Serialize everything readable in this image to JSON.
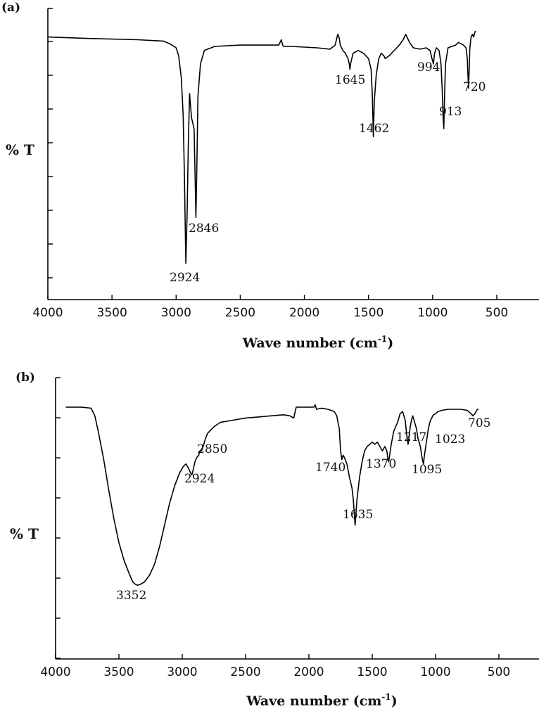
{
  "chart_data": [
    {
      "type": "line",
      "panel_label": "(a)",
      "title": "",
      "xlabel": "Wave number (cm",
      "xlabel_sup": "-1",
      "xlabel_close": ")",
      "ylabel": "% T",
      "xlim": [
        4000,
        250
      ],
      "ylim": [
        0,
        100
      ],
      "xticks": [
        4000,
        3500,
        3000,
        2500,
        2000,
        1500,
        1000,
        500
      ],
      "x_reversed": true,
      "grid": false,
      "series": [
        {
          "x": [
            4000,
            3700,
            3300,
            3100,
            3050,
            3000,
            2980,
            2960,
            2945,
            2935,
            2924,
            2915,
            2905,
            2895,
            2880,
            2870,
            2860,
            2850,
            2846,
            2840,
            2830,
            2810,
            2780,
            2700,
            2500,
            2200,
            2180,
            2170,
            2160,
            2100,
            1900,
            1800,
            1760,
            1740,
            1730,
            1720,
            1700,
            1680,
            1660,
            1650,
            1645,
            1640,
            1620,
            1580,
            1540,
            1500,
            1480,
            1470,
            1462,
            1455,
            1440,
            1420,
            1400,
            1380,
            1370,
            1340,
            1300,
            1260,
            1230,
            1210,
            1200,
            1180,
            1150,
            1100,
            1050,
            1020,
            1005,
            994,
            985,
            970,
            950,
            935,
            925,
            918,
            913,
            908,
            900,
            880,
            850,
            820,
            800,
            780,
            760,
            740,
            730,
            725,
            720,
            715,
            710,
            700,
            690,
            680,
            670,
            660
          ],
          "y": [
            92,
            91.5,
            91,
            90.5,
            89.5,
            88,
            85,
            77,
            63,
            40,
            8,
            25,
            52,
            71,
            62,
            60,
            58,
            36,
            25,
            40,
            70,
            82,
            87,
            88.5,
            89,
            89,
            91,
            89,
            88.5,
            88.5,
            88,
            87.5,
            89,
            93,
            92,
            89,
            87,
            86,
            84,
            82,
            80,
            82,
            86,
            87,
            86,
            84,
            80,
            70,
            55,
            68,
            78,
            84,
            86,
            85,
            84,
            85,
            87,
            89,
            91,
            93,
            92,
            90,
            88,
            87.5,
            88,
            87,
            84,
            82,
            86,
            88,
            87,
            82,
            72,
            62,
            58,
            68,
            82,
            88,
            88.5,
            89,
            90,
            89.5,
            89,
            88,
            84,
            78,
            73,
            80,
            88,
            92,
            93,
            92,
            94,
            94
          ]
        }
      ],
      "annotations": [
        {
          "text": "2924",
          "x": 2924,
          "y": 0
        },
        {
          "text": "2846",
          "x": 2846,
          "y": 18
        },
        {
          "text": "1645",
          "x": 1645,
          "y": 73
        },
        {
          "text": "1462",
          "x": 1462,
          "y": 47
        },
        {
          "text": "994",
          "x": 994,
          "y": 76
        },
        {
          "text": "913",
          "x": 913,
          "y": 52
        },
        {
          "text": "720",
          "x": 720,
          "y": 67
        }
      ]
    },
    {
      "type": "line",
      "panel_label": "(b)",
      "title": "",
      "xlabel": "Wave number (cm",
      "xlabel_sup": "-1",
      "xlabel_close": ")",
      "ylabel": "% T",
      "xlim": [
        4000,
        250
      ],
      "ylim": [
        0,
        100
      ],
      "xticks": [
        4000,
        3500,
        3000,
        2500,
        2000,
        1500,
        1000,
        500
      ],
      "x_reversed": true,
      "grid": false,
      "series": [
        {
          "x": [
            3920,
            3800,
            3720,
            3690,
            3660,
            3620,
            3580,
            3540,
            3500,
            3460,
            3420,
            3390,
            3370,
            3352,
            3330,
            3300,
            3260,
            3220,
            3180,
            3140,
            3100,
            3060,
            3020,
            2990,
            2970,
            2950,
            2935,
            2924,
            2915,
            2900,
            2885,
            2870,
            2860,
            2850,
            2840,
            2820,
            2800,
            2750,
            2700,
            2600,
            2500,
            2400,
            2300,
            2200,
            2150,
            2120,
            2100,
            2050,
            2000,
            1960,
            1950,
            1940,
            1900,
            1850,
            1800,
            1780,
            1760,
            1750,
            1740,
            1730,
            1720,
            1700,
            1680,
            1660,
            1650,
            1640,
            1635,
            1630,
            1620,
            1600,
            1580,
            1560,
            1540,
            1520,
            1500,
            1480,
            1460,
            1440,
            1420,
            1400,
            1385,
            1375,
            1370,
            1362,
            1350,
            1330,
            1300,
            1280,
            1260,
            1240,
            1225,
            1217,
            1210,
            1200,
            1190,
            1180,
            1170,
            1160,
            1150,
            1140,
            1120,
            1110,
            1100,
            1095,
            1090,
            1080,
            1070,
            1060,
            1050,
            1040,
            1030,
            1023,
            1015,
            1000,
            980,
            950,
            900,
            850,
            800,
            750,
            720,
            705,
            690,
            680,
            670,
            660
          ],
          "y": [
            92,
            92,
            91.5,
            88,
            80,
            68,
            54,
            41,
            30,
            22,
            16,
            12,
            11,
            10.5,
            11,
            12,
            15,
            20,
            28,
            38,
            48,
            56,
            62,
            65,
            66,
            64,
            62,
            61,
            63,
            67,
            69,
            70,
            72,
            72,
            73,
            77,
            80,
            83,
            85,
            86,
            87,
            87.5,
            88,
            88.5,
            88,
            87,
            92,
            92,
            92,
            92,
            93,
            91,
            91.5,
            91,
            90,
            88,
            82,
            72,
            68,
            70,
            69,
            66,
            60,
            55,
            50,
            42,
            38,
            42,
            50,
            60,
            67,
            72,
            74,
            75,
            76,
            75,
            76,
            74,
            72,
            74,
            72,
            68,
            67,
            70,
            75,
            81,
            85,
            89,
            90,
            86,
            78,
            75,
            78,
            83,
            86,
            88,
            86,
            84,
            82,
            78,
            74,
            70,
            67,
            66,
            69,
            73,
            77,
            81,
            84,
            86,
            87,
            88,
            88.5,
            89,
            90,
            90.5,
            91,
            91,
            91,
            90.5,
            89,
            88,
            89,
            90,
            91,
            91
          ]
        }
      ],
      "annotations": [
        {
          "text": "3352",
          "x": 3352,
          "y": 0
        },
        {
          "text": "2924",
          "x": 2924,
          "y": 0
        },
        {
          "text": "2850",
          "x": 2850,
          "y": 0
        },
        {
          "text": "1740",
          "x": 1740,
          "y": 0
        },
        {
          "text": "1635",
          "x": 1635,
          "y": 0
        },
        {
          "text": "1370",
          "x": 1370,
          "y": 0
        },
        {
          "text": "1217",
          "x": 1217,
          "y": 0
        },
        {
          "text": "1095",
          "x": 1095,
          "y": 0
        },
        {
          "text": "1023",
          "x": 1023,
          "y": 0
        },
        {
          "text": "705",
          "x": 705,
          "y": 0
        }
      ]
    }
  ]
}
